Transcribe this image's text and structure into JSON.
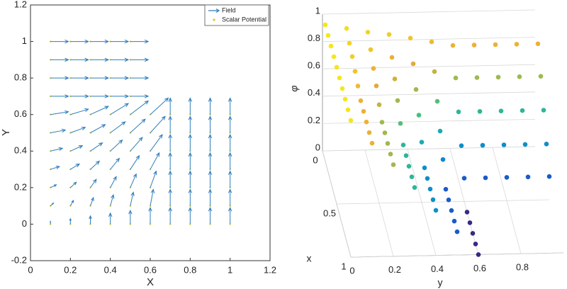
{
  "chart_data": [
    {
      "type": "quiver",
      "xlabel": "X",
      "ylabel": "Y",
      "xlim": [
        0,
        1.2
      ],
      "ylim": [
        -0.2,
        1.2
      ],
      "xticks": [
        0,
        0.2,
        0.4,
        0.6,
        0.8,
        1,
        1.2
      ],
      "yticks": [
        -0.2,
        0,
        0.2,
        0.4,
        0.6,
        0.8,
        1,
        1.2
      ],
      "legend": "upper right",
      "series": [
        {
          "name": "Field",
          "color": "#2e7ebc",
          "x": [
            0.1,
            0.1,
            0.1,
            0.1,
            0.1,
            0.1,
            0.1,
            0.1,
            0.1,
            0.1,
            0.1,
            0.2,
            0.2,
            0.2,
            0.2,
            0.2,
            0.2,
            0.2,
            0.2,
            0.2,
            0.2,
            0.2,
            0.3,
            0.3,
            0.3,
            0.3,
            0.3,
            0.3,
            0.3,
            0.3,
            0.3,
            0.3,
            0.3,
            0.4,
            0.4,
            0.4,
            0.4,
            0.4,
            0.4,
            0.4,
            0.4,
            0.4,
            0.4,
            0.4,
            0.5,
            0.5,
            0.5,
            0.5,
            0.5,
            0.5,
            0.5,
            0.5,
            0.5,
            0.5,
            0.5,
            0.6,
            0.6,
            0.6,
            0.6,
            0.6,
            0.6,
            0.6,
            0.7,
            0.7,
            0.7,
            0.7,
            0.7,
            0.7,
            0.7,
            0.8,
            0.8,
            0.8,
            0.8,
            0.8,
            0.8,
            0.8,
            0.9,
            0.9,
            0.9,
            0.9,
            0.9,
            0.9,
            0.9,
            1,
            1,
            1,
            1,
            1,
            1,
            1
          ],
          "y": [
            0,
            0.1,
            0.2,
            0.3,
            0.4,
            0.5,
            0.6,
            0.7,
            0.8,
            0.9,
            1,
            0,
            0.1,
            0.2,
            0.3,
            0.4,
            0.5,
            0.6,
            0.7,
            0.8,
            0.9,
            1,
            0,
            0.1,
            0.2,
            0.3,
            0.4,
            0.5,
            0.6,
            0.7,
            0.8,
            0.9,
            1,
            0,
            0.1,
            0.2,
            0.3,
            0.4,
            0.5,
            0.6,
            0.7,
            0.8,
            0.9,
            1,
            0,
            0.1,
            0.2,
            0.3,
            0.4,
            0.5,
            0.6,
            0.7,
            0.8,
            0.9,
            1,
            0,
            0.1,
            0.2,
            0.3,
            0.4,
            0.5,
            0.6,
            0,
            0.1,
            0.2,
            0.3,
            0.4,
            0.5,
            0.6,
            0,
            0.1,
            0.2,
            0.3,
            0.4,
            0.5,
            0.6,
            0,
            0.1,
            0.2,
            0.3,
            0.4,
            0.5,
            0.6,
            0,
            0.1,
            0.2,
            0.3,
            0.4,
            0.5,
            0.6
          ],
          "u": [
            0,
            0.17,
            0.33,
            0.5,
            0.67,
            0.83,
            1,
            1,
            1,
            1,
            1,
            0,
            0.17,
            0.33,
            0.5,
            0.67,
            0.83,
            1,
            1,
            1,
            1,
            1,
            0,
            0.17,
            0.33,
            0.5,
            0.67,
            0.83,
            1,
            1,
            1,
            1,
            1,
            0,
            0.17,
            0.33,
            0.5,
            0.67,
            0.83,
            1,
            1,
            1,
            1,
            1,
            0,
            0.17,
            0.33,
            0.5,
            0.67,
            0.83,
            1,
            1,
            1,
            1,
            1,
            0,
            0.17,
            0.33,
            0.5,
            0.67,
            0.83,
            1,
            0,
            0,
            0,
            0,
            0,
            0,
            0,
            0,
            0,
            0,
            0,
            0,
            0,
            0,
            0,
            0,
            0,
            0,
            0,
            0,
            0,
            0,
            0,
            0,
            0,
            0,
            0,
            0
          ],
          "v": [
            0.17,
            0.17,
            0.17,
            0.17,
            0.17,
            0.17,
            0.17,
            0,
            0,
            0,
            0,
            0.33,
            0.33,
            0.33,
            0.33,
            0.33,
            0.33,
            0.33,
            0,
            0,
            0,
            0,
            0.5,
            0.5,
            0.5,
            0.5,
            0.5,
            0.5,
            0.5,
            0,
            0,
            0,
            0,
            0.67,
            0.67,
            0.67,
            0.67,
            0.67,
            0.67,
            0.67,
            0,
            0,
            0,
            0,
            0.83,
            0.83,
            0.83,
            0.83,
            0.83,
            0.83,
            0.83,
            0,
            0,
            0,
            0,
            1,
            1,
            1,
            1,
            1,
            1,
            1,
            1,
            1,
            1,
            1,
            1,
            1,
            1,
            1,
            1,
            1,
            1,
            1,
            1,
            1,
            1,
            1,
            1,
            1,
            1,
            1,
            1,
            1,
            1,
            1,
            1,
            1,
            1,
            1
          ]
        },
        {
          "name": "Scalar Potential",
          "color": "#d8c62a"
        }
      ]
    },
    {
      "type": "scatter3d",
      "xlabel": "x",
      "ylabel": "y",
      "zlabel": "φ",
      "xlim": [
        0,
        1
      ],
      "ylim": [
        0,
        1
      ],
      "zlim": [
        0,
        1
      ],
      "xticks": [
        0,
        0.5,
        1
      ],
      "yticks": [
        0,
        0.2,
        0.4,
        0.6,
        0.8
      ],
      "zticks": [
        0,
        0.2,
        0.4,
        0.6,
        0.8,
        1
      ],
      "colormap": "parula",
      "x": [
        0.1,
        0.1,
        0.1,
        0.1,
        0.1,
        0.1,
        0.1,
        0.1,
        0.1,
        0.1,
        0.1,
        0.2,
        0.2,
        0.2,
        0.2,
        0.2,
        0.2,
        0.2,
        0.2,
        0.2,
        0.2,
        0.2,
        0.3,
        0.3,
        0.3,
        0.3,
        0.3,
        0.3,
        0.3,
        0.3,
        0.3,
        0.3,
        0.3,
        0.4,
        0.4,
        0.4,
        0.4,
        0.4,
        0.4,
        0.4,
        0.4,
        0.4,
        0.4,
        0.4,
        0.5,
        0.5,
        0.5,
        0.5,
        0.5,
        0.5,
        0.5,
        0.5,
        0.5,
        0.5,
        0.5,
        0.6,
        0.6,
        0.6,
        0.6,
        0.6,
        0.6,
        0.6,
        0.7,
        0.7,
        0.7,
        0.7,
        0.7,
        0.7,
        0.7,
        0.8,
        0.8,
        0.8,
        0.8,
        0.8,
        0.8,
        0.8,
        0.9,
        0.9,
        0.9,
        0.9,
        0.9,
        0.9,
        0.9,
        1,
        1,
        1,
        1,
        1,
        1,
        1
      ],
      "y": [
        0,
        0.1,
        0.2,
        0.3,
        0.4,
        0.5,
        0.6,
        0.7,
        0.8,
        0.9,
        1,
        0,
        0.1,
        0.2,
        0.3,
        0.4,
        0.5,
        0.6,
        0.7,
        0.8,
        0.9,
        1,
        0,
        0.1,
        0.2,
        0.3,
        0.4,
        0.5,
        0.6,
        0.7,
        0.8,
        0.9,
        1,
        0,
        0.1,
        0.2,
        0.3,
        0.4,
        0.5,
        0.6,
        0.7,
        0.8,
        0.9,
        1,
        0,
        0.1,
        0.2,
        0.3,
        0.4,
        0.5,
        0.6,
        0.7,
        0.8,
        0.9,
        1,
        0,
        0.1,
        0.2,
        0.3,
        0.4,
        0.5,
        0.6,
        0,
        0.1,
        0.2,
        0.3,
        0.4,
        0.5,
        0.6,
        0,
        0.1,
        0.2,
        0.3,
        0.4,
        0.5,
        0.6,
        0,
        0.1,
        0.2,
        0.3,
        0.4,
        0.5,
        0.6,
        0,
        0.1,
        0.2,
        0.3,
        0.4,
        0.5,
        0.6
      ],
      "z": [
        1,
        0.97,
        0.94,
        0.92,
        0.89,
        0.86,
        0.83,
        0.83,
        0.83,
        0.83,
        0.83,
        1,
        0.94,
        0.89,
        0.83,
        0.78,
        0.72,
        0.67,
        0.67,
        0.67,
        0.67,
        0.67,
        1,
        0.92,
        0.83,
        0.75,
        0.67,
        0.58,
        0.5,
        0.5,
        0.5,
        0.5,
        0.5,
        1,
        0.89,
        0.78,
        0.67,
        0.56,
        0.44,
        0.33,
        0.33,
        0.33,
        0.33,
        0.33,
        1,
        0.86,
        0.72,
        0.58,
        0.44,
        0.31,
        0.17,
        0.17,
        0.17,
        0.17,
        0.17,
        1,
        0.83,
        0.67,
        0.5,
        0.33,
        0.17,
        0,
        1,
        0.83,
        0.67,
        0.5,
        0.33,
        0.17,
        0,
        1,
        0.83,
        0.67,
        0.5,
        0.33,
        0.17,
        0,
        1,
        0.83,
        0.67,
        0.5,
        0.33,
        0.17,
        0,
        1,
        0.83,
        0.67,
        0.5,
        0.33,
        0.17,
        0
      ]
    }
  ]
}
